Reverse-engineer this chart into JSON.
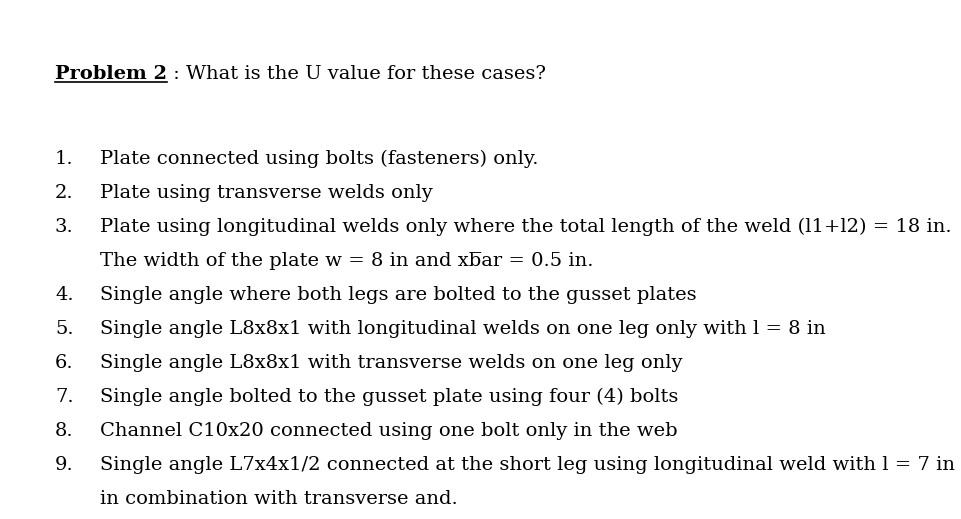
{
  "background_color": "#ffffff",
  "title_bold": "Problem 2",
  "title_rest": " : What is the U value for these cases?",
  "items": [
    {
      "num": "1.",
      "text": "Plate connected using bolts (fasteners) only."
    },
    {
      "num": "2.",
      "text": "Plate using transverse welds only"
    },
    {
      "num": "3.",
      "text": "Plate using longitudinal welds only where the total length of the weld (l1+l2) = 18 in.",
      "continuation": "The width of the plate w = 8 in and xbar = 0.5 in.",
      "cont_overbar": true
    },
    {
      "num": "4.",
      "text": "Single angle where both legs are bolted to the gusset plates"
    },
    {
      "num": "5.",
      "text": "Single angle L8x8x1 with longitudinal welds on one leg only with l = 8 in"
    },
    {
      "num": "6.",
      "text": "Single angle L8x8x1 with transverse welds on one leg only"
    },
    {
      "num": "7.",
      "text": "Single angle bolted to the gusset plate using four (4) bolts"
    },
    {
      "num": "8.",
      "text": "Channel C10x20 connected using one bolt only in the web"
    },
    {
      "num": "9.",
      "text": "Single angle L7x4x1/2 connected at the short leg using longitudinal weld with l = 7 in",
      "continuation": "in combination with transverse and."
    }
  ],
  "font_size": 14,
  "text_color": "#000000",
  "fig_width": 9.61,
  "fig_height": 5.19,
  "dpi": 100
}
